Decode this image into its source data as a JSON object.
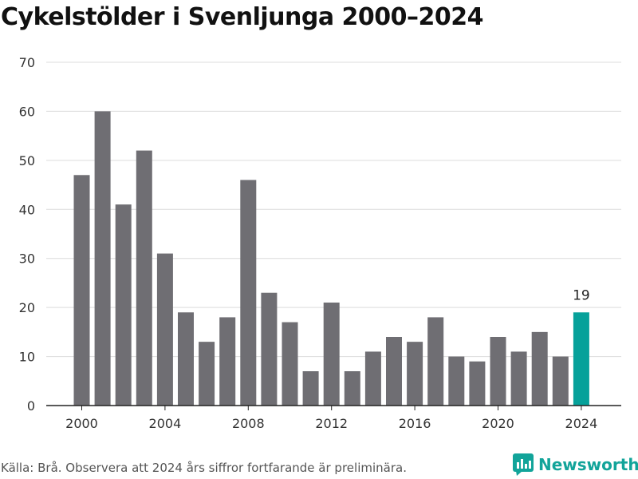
{
  "title": "Cykelstölder i Svenljunga 2000–2024",
  "source": "Källa: Brå. Observera att 2024 års siffror fortfarande är preliminära.",
  "brand": {
    "name": "Newsworthy",
    "icon": "newsworthy-logo-icon",
    "color": "#12a49a"
  },
  "colors": {
    "bar": "#6f6e73",
    "highlight": "#06a19a",
    "grid": "#dcdcdc",
    "axis": "#222222"
  },
  "chart_data": {
    "type": "bar",
    "title": "Cykelstölder i Svenljunga 2000–2024",
    "xlabel": "",
    "ylabel": "",
    "categories": [
      "2000",
      "2001",
      "2002",
      "2003",
      "2004",
      "2005",
      "2006",
      "2007",
      "2008",
      "2009",
      "2010",
      "2011",
      "2012",
      "2013",
      "2014",
      "2015",
      "2016",
      "2017",
      "2018",
      "2019",
      "2020",
      "2021",
      "2022",
      "2023",
      "2024"
    ],
    "values": [
      47,
      60,
      41,
      52,
      31,
      19,
      13,
      18,
      46,
      23,
      17,
      7,
      21,
      7,
      11,
      14,
      13,
      18,
      10,
      9,
      14,
      11,
      15,
      10,
      19
    ],
    "ylim": [
      0,
      70
    ],
    "yticks": [
      "0",
      "10",
      "20",
      "30",
      "40",
      "50",
      "60",
      "70"
    ],
    "xtick_labels": [
      "2000",
      "2004",
      "2008",
      "2012",
      "2016",
      "2020",
      "2024"
    ],
    "highlight_category": "2024",
    "data_labels": [
      {
        "category": "2024",
        "text": "19"
      }
    ],
    "grid": true,
    "legend": "none"
  }
}
